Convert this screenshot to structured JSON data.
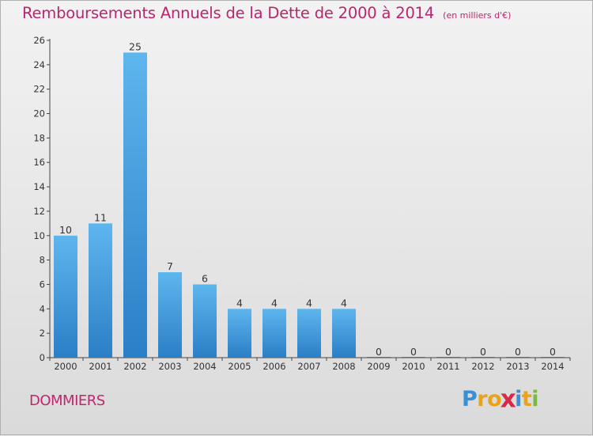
{
  "title": "Remboursements Annuels de la Dette de 2000 à 2014",
  "unit_note": "(en milliers d'€)",
  "commune": "DOMMIERS",
  "logo": {
    "letters": [
      "P",
      "r",
      "o",
      "x",
      "i",
      "t",
      "i"
    ],
    "colors": [
      "#3a8fd6",
      "#e8a21c",
      "#e8a21c",
      "#d62a4a",
      "#3a8fd6",
      "#e8a21c",
      "#7cb940"
    ]
  },
  "chart_data": {
    "type": "bar",
    "categories": [
      "2000",
      "2001",
      "2002",
      "2003",
      "2004",
      "2005",
      "2006",
      "2007",
      "2008",
      "2009",
      "2010",
      "2011",
      "2012",
      "2013",
      "2014"
    ],
    "values": [
      10,
      11,
      25,
      7,
      6,
      4,
      4,
      4,
      4,
      0,
      0,
      0,
      0,
      0,
      0
    ],
    "data_labels": [
      "10",
      "11",
      "25",
      "7",
      "6",
      "4",
      "4",
      "4",
      "4",
      "0",
      "0",
      "0",
      "0",
      "0",
      "0"
    ],
    "yticks": [
      0,
      2,
      4,
      6,
      8,
      10,
      12,
      14,
      16,
      18,
      20,
      22,
      24,
      26
    ],
    "ylim": [
      0,
      26
    ],
    "xlabel": "",
    "ylabel": "",
    "grid": false,
    "bar_color": "#3a9ae0"
  }
}
